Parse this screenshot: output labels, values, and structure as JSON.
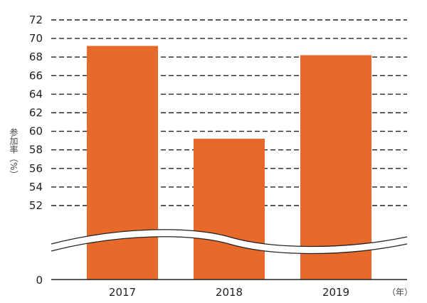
{
  "chart_data": {
    "type": "bar",
    "categories": [
      "2017",
      "2018",
      "2019"
    ],
    "values": [
      69.2,
      59.2,
      68.2
    ],
    "ylabel": "参加率（%）",
    "xunit": "（年）",
    "yticks": [
      72,
      70,
      68,
      66,
      64,
      62,
      60,
      58,
      56,
      54,
      52
    ],
    "ylim": [
      52,
      72
    ],
    "axis_break": true,
    "baseline_label": "0",
    "grid": true,
    "bar_color": "#e86a2a"
  }
}
